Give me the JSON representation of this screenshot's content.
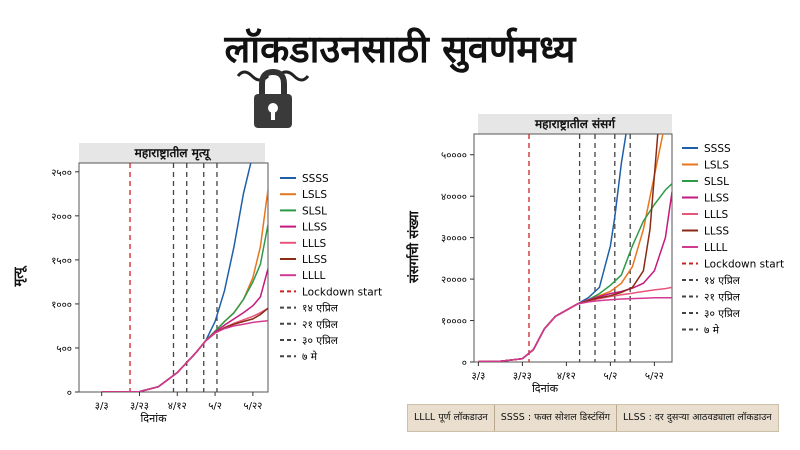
{
  "header": {
    "title": "लॉकडाउनसाठी सुवर्णमध्य"
  },
  "icons": {
    "lock": "padlock-icon"
  },
  "legend_items": [
    {
      "label": "SSSS",
      "color": "#1f5fa8",
      "dash": false
    },
    {
      "label": "LSLS",
      "color": "#e8761e",
      "dash": false
    },
    {
      "label": "SLSL",
      "color": "#2e9a47",
      "dash": false
    },
    {
      "label": "LLSS",
      "color": "#c4197e",
      "dash": false
    },
    {
      "label": "LLLS",
      "color": "#e8557a",
      "dash": false
    },
    {
      "label": "LLSS",
      "color": "#8a2b16",
      "dash": false
    },
    {
      "label": "LLLL",
      "color": "#d23a92",
      "dash": false
    },
    {
      "label": "Lockdown start",
      "color": "#cc2222",
      "dash": true
    },
    {
      "label": "१४ एप्रिल",
      "color": "#444444",
      "dash": true
    },
    {
      "label": "२१ एप्रिल",
      "color": "#444444",
      "dash": true
    },
    {
      "label": "३० एप्रिल",
      "color": "#444444",
      "dash": true
    },
    {
      "label": "७ मे",
      "color": "#444444",
      "dash": true
    }
  ],
  "chart_data": [
    {
      "type": "line",
      "title": "महाराष्ट्रातील मृत्यू",
      "xlabel": "दिनांक",
      "ylabel": "मृत्यू",
      "x_ticks": [
        "३/३",
        "३/२३",
        "४/१२",
        "५/२",
        "५/२२"
      ],
      "y_ticks": [
        "०",
        "५००",
        "१०००",
        "१५००",
        "२०००",
        "२५००"
      ],
      "ylim": [
        0,
        2600
      ],
      "xlim": [
        -12,
        88
      ],
      "x_tick_days": [
        0,
        20,
        40,
        60,
        80
      ],
      "vlines": [
        {
          "day": 15,
          "label": "Lockdown start",
          "color": "#cc2222"
        },
        {
          "day": 38,
          "label": "१४ एप्रिल",
          "color": "#444444"
        },
        {
          "day": 45,
          "label": "२१ एप्रिल",
          "color": "#444444"
        },
        {
          "day": 54,
          "label": "३० एप्रिल",
          "color": "#444444"
        },
        {
          "day": 61,
          "label": "७ मे",
          "color": "#444444"
        }
      ],
      "series": [
        {
          "name": "SSSS",
          "color": "#1f5fa8",
          "x": [
            0,
            10,
            20,
            30,
            40,
            50,
            55,
            60,
            65,
            70,
            75,
            80
          ],
          "y": [
            0,
            0,
            5,
            60,
            220,
            450,
            580,
            800,
            1150,
            1650,
            2250,
            2700
          ]
        },
        {
          "name": "LSLS",
          "color": "#e8761e",
          "x": [
            0,
            10,
            20,
            30,
            40,
            50,
            55,
            60,
            65,
            70,
            75,
            80,
            84,
            88
          ],
          "y": [
            0,
            0,
            5,
            60,
            220,
            450,
            580,
            690,
            800,
            900,
            1050,
            1300,
            1650,
            2300
          ]
        },
        {
          "name": "SLSL",
          "color": "#2e9a47",
          "x": [
            0,
            10,
            20,
            30,
            40,
            50,
            55,
            60,
            65,
            70,
            75,
            80,
            84,
            88
          ],
          "y": [
            0,
            0,
            5,
            60,
            220,
            450,
            580,
            690,
            800,
            900,
            1050,
            1250,
            1450,
            1900
          ]
        },
        {
          "name": "LLSS",
          "color": "#c4197e",
          "x": [
            0,
            10,
            20,
            30,
            40,
            50,
            55,
            60,
            65,
            70,
            75,
            80,
            84,
            88
          ],
          "y": [
            0,
            0,
            5,
            60,
            220,
            450,
            580,
            680,
            760,
            830,
            900,
            980,
            1080,
            1400
          ]
        },
        {
          "name": "LLLS",
          "color": "#e8557a",
          "x": [
            0,
            10,
            20,
            30,
            40,
            50,
            55,
            60,
            65,
            70,
            75,
            80,
            84,
            88
          ],
          "y": [
            0,
            0,
            5,
            60,
            220,
            450,
            580,
            670,
            730,
            780,
            820,
            860,
            900,
            950
          ]
        },
        {
          "name": "LLSS",
          "color": "#8a2b16",
          "x": [
            0,
            10,
            20,
            30,
            40,
            50,
            55,
            60,
            65,
            70,
            75,
            80,
            84,
            88
          ],
          "y": [
            0,
            0,
            5,
            60,
            220,
            450,
            580,
            670,
            730,
            770,
            800,
            830,
            880,
            950
          ]
        },
        {
          "name": "LLLL",
          "color": "#d23a92",
          "x": [
            0,
            10,
            20,
            30,
            40,
            50,
            55,
            60,
            65,
            70,
            75,
            80,
            84,
            88
          ],
          "y": [
            0,
            0,
            5,
            60,
            220,
            450,
            580,
            670,
            720,
            750,
            770,
            790,
            800,
            810
          ]
        }
      ]
    },
    {
      "type": "line",
      "title": "महाराष्ट्रातील संसर्ग",
      "xlabel": "दिनांक",
      "ylabel": "संसर्गाची संख्या",
      "x_ticks": [
        "३/३",
        "३/२३",
        "४/१२",
        "५/२",
        "५/२२"
      ],
      "y_ticks": [
        "०",
        "१००००",
        "२००००",
        "३००००",
        "४००००",
        "५००००"
      ],
      "ylim": [
        0,
        55000
      ],
      "xlim": [
        -2,
        88
      ],
      "x_tick_days": [
        0,
        20,
        40,
        60,
        80
      ],
      "vlines": [
        {
          "day": 23,
          "label": "Lockdown start",
          "color": "#cc2222"
        },
        {
          "day": 46,
          "label": "१४ एप्रिल",
          "color": "#444444"
        },
        {
          "day": 53,
          "label": "२१ एप्रिल",
          "color": "#444444"
        },
        {
          "day": 62,
          "label": "३० एप्रिल",
          "color": "#444444"
        },
        {
          "day": 69,
          "label": "७ मे",
          "color": "#444444"
        }
      ],
      "series": [
        {
          "name": "SSSS",
          "color": "#1f5fa8",
          "x": [
            0,
            10,
            20,
            25,
            30,
            35,
            40,
            45,
            50,
            55,
            60,
            62,
            65,
            68
          ],
          "y": [
            100,
            200,
            800,
            3000,
            8000,
            11000,
            12500,
            14000,
            15500,
            18000,
            28000,
            35000,
            48000,
            58000
          ]
        },
        {
          "name": "LSLS",
          "color": "#e8761e",
          "x": [
            0,
            10,
            20,
            25,
            30,
            35,
            40,
            45,
            50,
            55,
            60,
            65,
            70,
            75,
            80,
            85
          ],
          "y": [
            100,
            200,
            800,
            3000,
            8000,
            11000,
            12500,
            14000,
            15000,
            16000,
            17000,
            19000,
            23000,
            32000,
            45000,
            58000
          ]
        },
        {
          "name": "SLSL",
          "color": "#2e9a47",
          "x": [
            0,
            10,
            20,
            25,
            30,
            35,
            40,
            45,
            50,
            55,
            60,
            65,
            70,
            75,
            80,
            85,
            88
          ],
          "y": [
            100,
            200,
            800,
            3000,
            8000,
            11000,
            12500,
            14000,
            15000,
            16500,
            18500,
            21000,
            28000,
            34000,
            38000,
            41500,
            43000
          ]
        },
        {
          "name": "LLSS",
          "color": "#c4197e",
          "x": [
            0,
            10,
            20,
            25,
            30,
            35,
            40,
            45,
            50,
            55,
            60,
            65,
            70,
            75,
            80,
            85,
            88
          ],
          "y": [
            100,
            200,
            800,
            3000,
            8000,
            11000,
            12500,
            14000,
            15000,
            15800,
            16500,
            17000,
            17800,
            19000,
            22000,
            30000,
            41000
          ]
        },
        {
          "name": "LLLS",
          "color": "#e8557a",
          "x": [
            0,
            10,
            20,
            25,
            30,
            35,
            40,
            45,
            50,
            55,
            60,
            65,
            70,
            75,
            80,
            85,
            88
          ],
          "y": [
            100,
            200,
            800,
            3000,
            8000,
            11000,
            12500,
            14000,
            14800,
            15300,
            15800,
            16200,
            16600,
            17000,
            17400,
            17700,
            18000
          ]
        },
        {
          "name": "LLSS",
          "color": "#8a2b16",
          "x": [
            0,
            10,
            20,
            25,
            30,
            35,
            40,
            45,
            50,
            55,
            60,
            65,
            70,
            75,
            78,
            82
          ],
          "y": [
            100,
            200,
            800,
            3000,
            8000,
            11000,
            12500,
            14000,
            14800,
            15500,
            16000,
            16800,
            18000,
            22000,
            32000,
            58000
          ]
        },
        {
          "name": "LLLL",
          "color": "#d23a92",
          "x": [
            0,
            10,
            20,
            25,
            30,
            35,
            40,
            45,
            50,
            55,
            60,
            65,
            70,
            75,
            80,
            85,
            88
          ],
          "y": [
            100,
            200,
            800,
            3000,
            8000,
            11000,
            12500,
            14000,
            14500,
            14800,
            15000,
            15200,
            15300,
            15400,
            15500,
            15500,
            15500
          ]
        }
      ]
    }
  ],
  "footer": {
    "item1": "LLLL पूर्ण लॉकडाउन",
    "item2": "SSSS : फक्त सोशल डिस्टंसिंग",
    "item3": "LLSS : दर दुसऱ्या आठवड्याला लॉकडाउन"
  }
}
